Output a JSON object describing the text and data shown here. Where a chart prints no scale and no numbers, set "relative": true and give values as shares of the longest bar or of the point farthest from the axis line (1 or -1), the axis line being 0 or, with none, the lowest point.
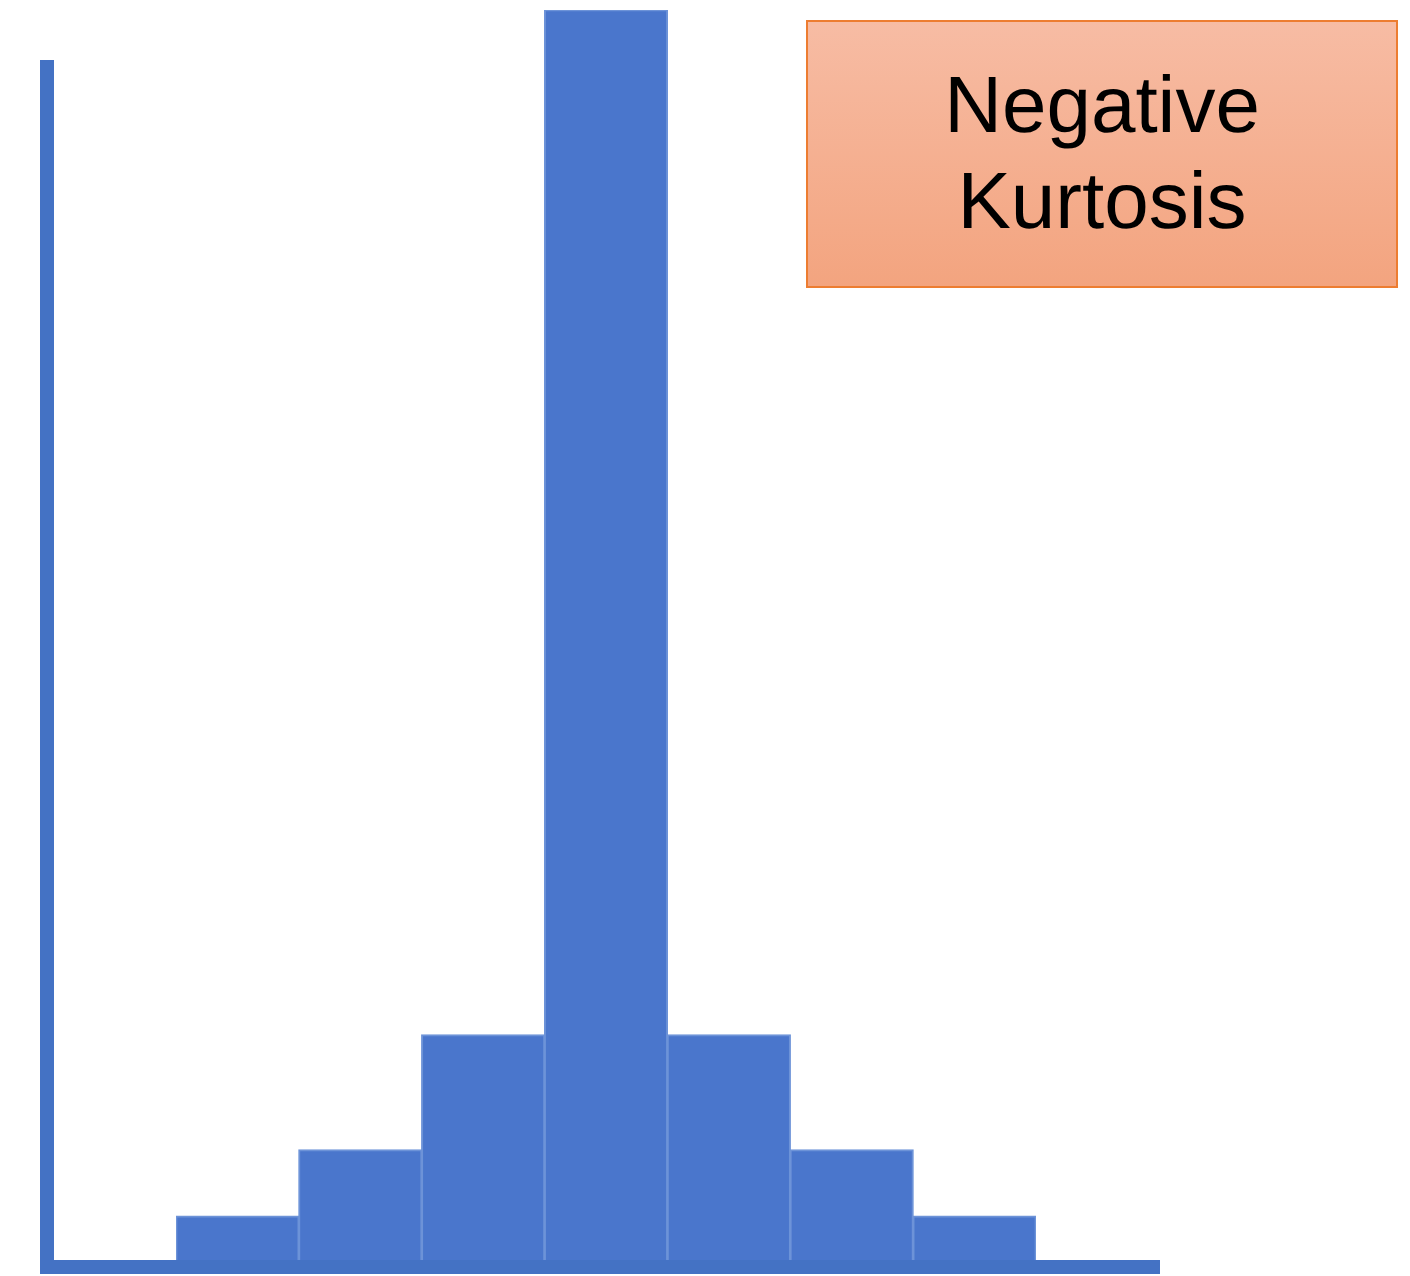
{
  "chart_data": {
    "type": "bar",
    "title": "Negative Kurtosis",
    "relative": true,
    "categories": [
      null,
      null,
      null,
      null,
      null,
      null,
      null
    ],
    "values": [
      0.035,
      0.088,
      0.18,
      1,
      0.18,
      0.088,
      0.035
    ],
    "color": "#4a76cc"
  }
}
